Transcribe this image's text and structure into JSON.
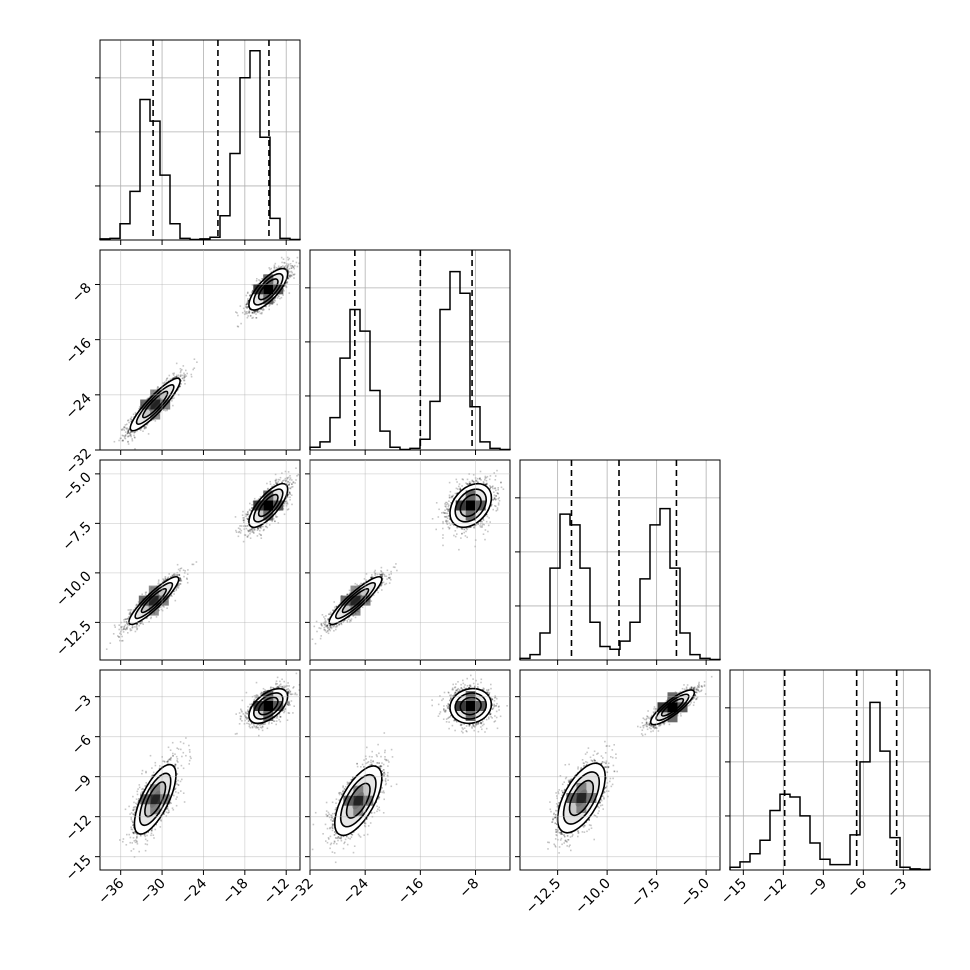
{
  "chart_data": {
    "type": "corner",
    "title": "",
    "parameters": [
      {
        "index": 0,
        "range": [
          -39,
          -10
        ],
        "ticks": [
          -36,
          -30,
          -24,
          -18,
          -12
        ],
        "tick_labels": [
          "−36",
          "−30",
          "−24",
          "−18",
          "−12"
        ],
        "quantiles": [
          -31.3,
          -21.9,
          -14.5
        ]
      },
      {
        "index": 1,
        "range": [
          -32,
          -3
        ],
        "ticks": [
          -32,
          -24,
          -16,
          -8
        ],
        "tick_labels": [
          "−32",
          "−24",
          "−16",
          "−8"
        ],
        "quantiles": [
          -25.5,
          -16.0,
          -8.5
        ]
      },
      {
        "index": 2,
        "range": [
          -14.4,
          -4.3
        ],
        "ticks": [
          -12.5,
          -10.0,
          -7.5,
          -5.0
        ],
        "tick_labels": [
          "−12.5",
          "−10.0",
          "−7.5",
          "−5.0"
        ],
        "quantiles": [
          -11.8,
          -9.4,
          -6.5
        ]
      },
      {
        "index": 3,
        "range": [
          -16.0,
          -1.0
        ],
        "ticks": [
          -15,
          -12,
          -9,
          -6,
          -3
        ],
        "tick_labels": [
          "−15",
          "−12",
          "−9",
          "−6",
          "−3"
        ],
        "quantiles": [
          -11.9,
          -6.5,
          -3.5
        ]
      }
    ],
    "histograms": [
      {
        "param": 0,
        "bins": 20,
        "values": [
          0.2,
          0.3,
          3.0,
          9.0,
          26.0,
          22.0,
          12.0,
          3.0,
          0.3,
          0.1,
          0.2,
          0.5,
          4.5,
          16.0,
          30.0,
          35.0,
          19.0,
          4.0,
          0.3,
          0.1
        ]
      },
      {
        "param": 1,
        "bins": 20,
        "values": [
          0.5,
          1.5,
          6.0,
          17.0,
          26.0,
          22.0,
          11.0,
          3.5,
          0.5,
          0.1,
          0.3,
          2.0,
          9.0,
          26.0,
          33.0,
          29.0,
          8.0,
          1.5,
          0.3,
          0.1
        ]
      },
      {
        "param": 2,
        "bins": 20,
        "values": [
          0.3,
          1.0,
          5.0,
          17.0,
          27.0,
          25.0,
          17.0,
          7.0,
          2.5,
          2.0,
          3.5,
          7.0,
          15.0,
          25.0,
          28.0,
          17.0,
          5.0,
          1.0,
          0.3,
          0.1
        ]
      },
      {
        "param": 3,
        "bins": 20,
        "values": [
          0.5,
          1.5,
          3.0,
          5.5,
          11.0,
          14.0,
          13.5,
          10.0,
          5.0,
          2.0,
          1.0,
          1.0,
          6.5,
          20.0,
          31.0,
          22.0,
          6.0,
          0.5,
          0.2,
          0.1
        ]
      }
    ],
    "histogram_ylim": [
      0,
      37
    ],
    "histogram_yticks": [
      10,
      20,
      30
    ],
    "pairs": [
      {
        "x": 0,
        "y": 1,
        "modes": [
          {
            "center": [
              -31.0,
              -25.4
            ],
            "sd": [
              1.8,
              1.9
            ],
            "rho": 0.9,
            "weight": 0.5
          },
          {
            "center": [
              -14.6,
              -8.7
            ],
            "sd": [
              1.4,
              1.5
            ],
            "rho": 0.75,
            "weight": 0.5
          }
        ]
      },
      {
        "x": 0,
        "y": 2,
        "modes": [
          {
            "center": [
              -31.2,
              -11.4
            ],
            "sd": [
              1.8,
              0.6
            ],
            "rho": 0.9,
            "weight": 0.5
          },
          {
            "center": [
              -14.6,
              -6.6
            ],
            "sd": [
              1.4,
              0.55
            ],
            "rho": 0.75,
            "weight": 0.5
          }
        ]
      },
      {
        "x": 0,
        "y": 3,
        "modes": [
          {
            "center": [
              -31.0,
              -10.7
            ],
            "sd": [
              1.5,
              1.3
            ],
            "rho": 0.7,
            "weight": 0.5
          },
          {
            "center": [
              -14.6,
              -3.7
            ],
            "sd": [
              1.4,
              0.65
            ],
            "rho": 0.55,
            "weight": 0.5
          }
        ]
      },
      {
        "x": 1,
        "y": 2,
        "modes": [
          {
            "center": [
              -25.4,
              -11.4
            ],
            "sd": [
              1.9,
              0.6
            ],
            "rho": 0.9,
            "weight": 0.5
          },
          {
            "center": [
              -8.7,
              -6.6
            ],
            "sd": [
              1.5,
              0.55
            ],
            "rho": 0.35,
            "weight": 0.5
          }
        ]
      },
      {
        "x": 1,
        "y": 3,
        "modes": [
          {
            "center": [
              -25.0,
              -10.8
            ],
            "sd": [
              1.7,
              1.3
            ],
            "rho": 0.65,
            "weight": 0.5
          },
          {
            "center": [
              -8.7,
              -3.7
            ],
            "sd": [
              1.5,
              0.65
            ],
            "rho": 0.1,
            "weight": 0.5
          }
        ]
      },
      {
        "x": 2,
        "y": 3,
        "modes": [
          {
            "center": [
              -11.3,
              -10.6
            ],
            "sd": [
              0.6,
              1.3
            ],
            "rho": 0.6,
            "weight": 0.5
          },
          {
            "center": [
              -6.7,
              -3.8
            ],
            "sd": [
              0.55,
              0.65
            ],
            "rho": 0.85,
            "weight": 0.5
          }
        ]
      }
    ],
    "contour_levels_sigma": [
      0.5,
      1.0,
      1.5,
      2.0
    ],
    "grid": true
  }
}
